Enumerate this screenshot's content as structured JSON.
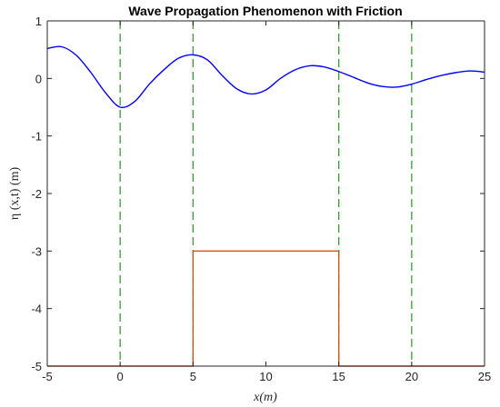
{
  "chart_data": {
    "type": "line",
    "title": "Wave Propagation Phenomenon with Friction",
    "xlabel": "x(m)",
    "ylabel": "η (x,t) (m)",
    "xlim": [
      -5,
      25
    ],
    "ylim": [
      -5,
      1
    ],
    "xticks": [
      -5,
      0,
      5,
      10,
      15,
      20,
      25
    ],
    "yticks": [
      -5,
      -4,
      -3,
      -2,
      -1,
      0,
      1
    ],
    "grid": false,
    "legend": "none",
    "colors": {
      "wave": "#0000ff",
      "bathymetry": "#d95319",
      "markers": "#33a02c",
      "axes": "#262626"
    },
    "series": [
      {
        "x": [
          -5,
          -4,
          -3,
          -2,
          -1,
          0,
          1,
          2,
          3,
          4,
          5,
          6,
          7,
          8,
          9,
          10,
          11,
          12,
          13,
          14,
          15,
          16,
          17,
          18,
          19,
          20,
          21,
          22,
          23,
          24,
          25
        ],
        "y": [
          0.52,
          0.55,
          0.4,
          0.1,
          -0.25,
          -0.5,
          -0.4,
          -0.1,
          0.15,
          0.35,
          0.41,
          0.32,
          0.05,
          -0.18,
          -0.27,
          -0.2,
          0.0,
          0.15,
          0.22,
          0.2,
          0.12,
          0.02,
          -0.08,
          -0.14,
          -0.15,
          -0.1,
          -0.02,
          0.05,
          0.1,
          0.13,
          0.11
        ]
      },
      {
        "x": [
          -5,
          5,
          5,
          15,
          15,
          25
        ],
        "y": [
          -5,
          -5,
          -3,
          -3,
          -5,
          -5
        ]
      }
    ],
    "vlines": [
      0,
      5,
      15,
      20
    ]
  }
}
